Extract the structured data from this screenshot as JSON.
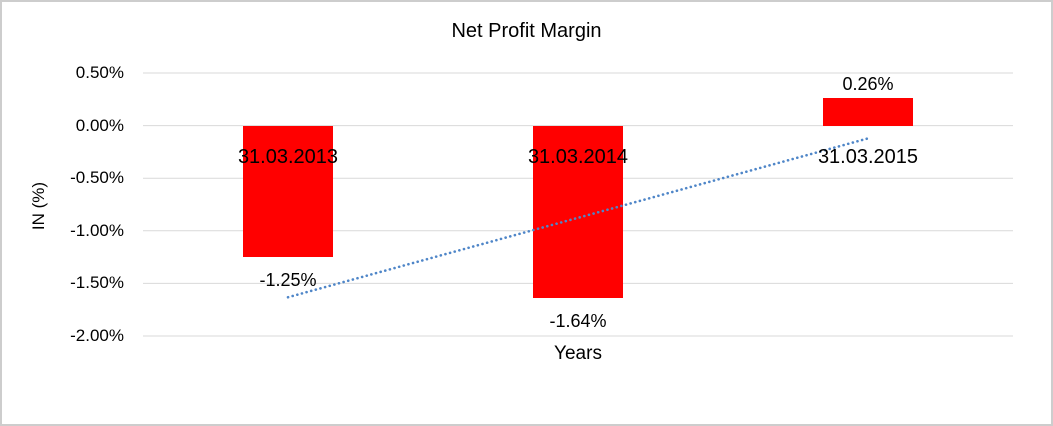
{
  "frame": {
    "background": "#FFFFFF",
    "border_color": "#CDCDCD"
  },
  "chart_data": {
    "type": "bar",
    "title": "Net Profit Margin",
    "xlabel": "Years",
    "ylabel": "IN (%)",
    "categories": [
      "31.03.2013",
      "31.03.2014",
      "31.03.2015"
    ],
    "values": [
      -1.25,
      -1.64,
      0.26
    ],
    "data_labels": [
      "-1.25%",
      "-1.64%",
      "0.26%"
    ],
    "y_ticks": [
      0.5,
      0.0,
      -0.5,
      -1.0,
      -1.5,
      -2.0
    ],
    "y_tick_labels": [
      "0.50%",
      "0.00%",
      "-0.50%",
      "-1.00%",
      "-1.50%",
      "-2.00%"
    ],
    "ylim": [
      -2.0,
      0.5
    ],
    "grid": true,
    "legend": "none",
    "bar_color": "#FF0000",
    "gridline_color": "#D9D9D9",
    "text_color": "#000000",
    "trendline": {
      "type": "linear",
      "style": "dotted",
      "color": "#4F86C8"
    }
  }
}
